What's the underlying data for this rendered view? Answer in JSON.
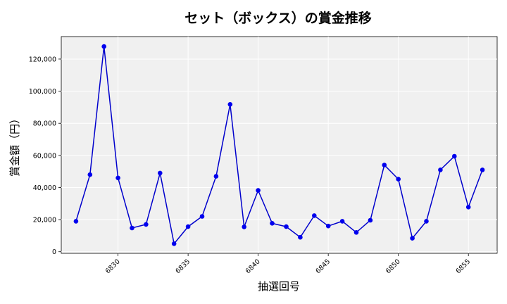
{
  "chart_data": {
    "type": "line",
    "title": "セット（ボックス）の賞金推移",
    "xlabel": "抽選回号",
    "ylabel": "賞金額（円）",
    "xlim": [
      6825.95,
      6857.05
    ],
    "ylim": [
      -1000,
      134000
    ],
    "x_ticks": [
      6830,
      6835,
      6840,
      6845,
      6850,
      6855
    ],
    "y_ticks": [
      0,
      20000,
      40000,
      60000,
      80000,
      100000,
      120000
    ],
    "y_tick_labels": [
      "0",
      "20,000",
      "40,000",
      "60,000",
      "80,000",
      "100,000",
      "120,000"
    ],
    "grid": true,
    "colors": {
      "line": "#0000cc",
      "marker": "#0000ee",
      "plot_bg": "#f0f0f0"
    },
    "series": [
      {
        "x": [
          6827,
          6828,
          6829,
          6830,
          6831,
          6832,
          6833,
          6834,
          6835,
          6836,
          6837,
          6838,
          6839,
          6840,
          6841,
          6842,
          6843,
          6844,
          6845,
          6846,
          6847,
          6848,
          6849,
          6850,
          6851,
          6852,
          6853,
          6854,
          6855,
          6856
        ],
        "values": [
          19000,
          48000,
          127800,
          46000,
          14800,
          17000,
          49000,
          5000,
          15600,
          22000,
          47000,
          91800,
          15500,
          38200,
          17700,
          15600,
          9000,
          22500,
          16000,
          19000,
          12000,
          19600,
          54000,
          45200,
          8400,
          19000,
          51000,
          59500,
          27800,
          51000
        ]
      }
    ]
  }
}
